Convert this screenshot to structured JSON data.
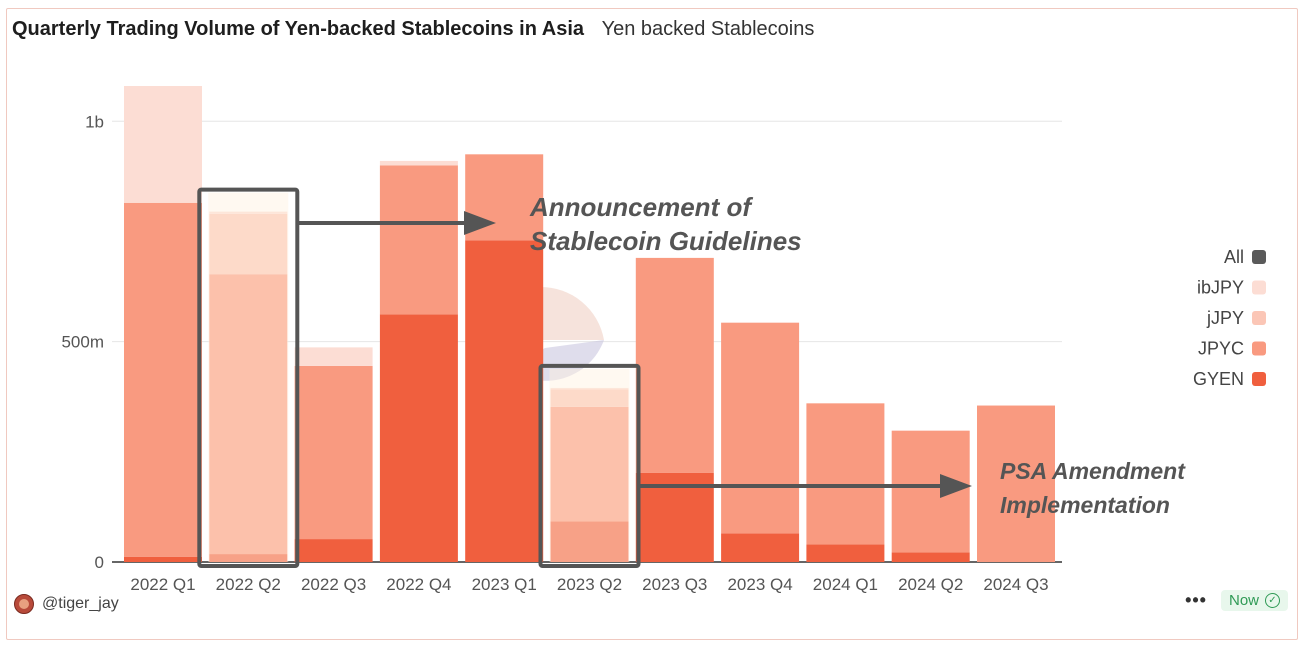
{
  "header": {
    "title": "Quarterly Trading Volume of Yen-backed Stablecoins in Asia",
    "subtitle": "Yen backed Stablecoins"
  },
  "watermark": {
    "text": "Dune"
  },
  "footer": {
    "user": "@tiger_jay",
    "menu": "•••",
    "status": "Now"
  },
  "annotations": [
    {
      "lines": [
        "Announcement of",
        "Stablecoin Guidelines"
      ],
      "highlight": "2022 Q2"
    },
    {
      "lines": [
        "PSA Amendment",
        "Implementation"
      ],
      "highlight": "2023 Q2"
    }
  ],
  "chart_data": {
    "type": "bar",
    "stacked": true,
    "categories": [
      "2022 Q1",
      "2022 Q2",
      "2022 Q3",
      "2022 Q4",
      "2023 Q1",
      "2023 Q2",
      "2023 Q3",
      "2023 Q4",
      "2024 Q1",
      "2024 Q2",
      "2024 Q3"
    ],
    "y_ticks": [
      {
        "value": 0,
        "label": "0"
      },
      {
        "value": 500000000,
        "label": "500m"
      },
      {
        "value": 1000000000,
        "label": "1b"
      }
    ],
    "ylim": [
      0,
      1080000000
    ],
    "grid": true,
    "legend_position": "right",
    "legend": [
      "All",
      "ibJPY",
      "jJPY",
      "JPYC",
      "GYEN"
    ],
    "colors": {
      "All": "#5a5a5a",
      "ibJPY": "#fcddd4",
      "jJPY": "#fbc6b6",
      "JPYC": "#f99a80",
      "GYEN": "#f05f3e"
    },
    "series": [
      {
        "name": "GYEN",
        "values": [
          12000000,
          18000000,
          52000000,
          562000000,
          730000000,
          92000000,
          202000000,
          65000000,
          40000000,
          22000000,
          0
        ]
      },
      {
        "name": "JPYC",
        "values": [
          803000000,
          635000000,
          393000000,
          338000000,
          195000000,
          260000000,
          488000000,
          478000000,
          320000000,
          276000000,
          355000000
        ]
      },
      {
        "name": "jJPY",
        "values": [
          0,
          137000000,
          0,
          0,
          0,
          40000000,
          0,
          0,
          0,
          0,
          0
        ]
      },
      {
        "name": "ibJPY",
        "values": [
          265000000,
          5000000,
          42000000,
          10000000,
          0,
          3000000,
          0,
          0,
          0,
          0,
          0
        ]
      }
    ]
  }
}
